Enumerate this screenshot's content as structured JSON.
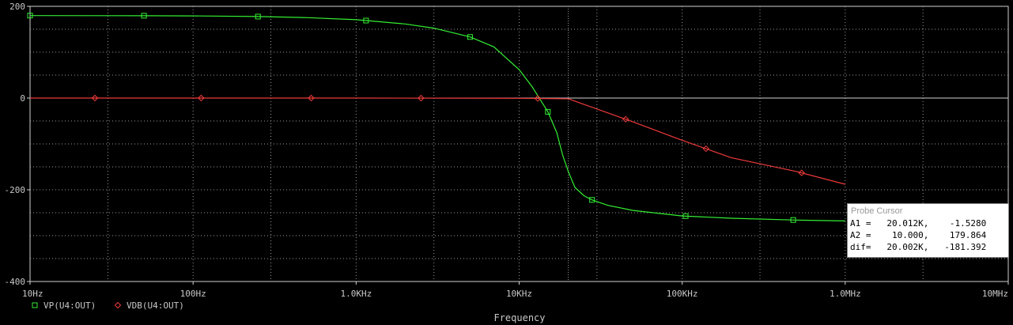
{
  "chart_data": {
    "type": "line",
    "xscale": "log",
    "xlim": [
      10,
      10000000
    ],
    "ylim": [
      -400,
      200
    ],
    "xlabel": "Frequency",
    "x_tick_labels": [
      "10Hz",
      "100Hz",
      "1.0KHz",
      "10KHz",
      "100KHz",
      "1.0MHz",
      "10MHz"
    ],
    "y_tick_labels": [
      "200",
      "0",
      "-200",
      "-400"
    ],
    "grid": true,
    "series": [
      {
        "name": "VP(U4:OUT)",
        "color": "#33ee33",
        "marker": "square",
        "x": [
          10,
          50,
          100,
          250,
          500,
          1000,
          2000,
          3000,
          5000,
          7000,
          10000,
          12000,
          15000,
          17000,
          18500,
          20000,
          22000,
          25000,
          28000,
          35000,
          50000,
          100000,
          200000,
          500000,
          1000000
        ],
        "y": [
          179.9,
          179.5,
          179.1,
          177.7,
          175.4,
          170.8,
          161.6,
          152.4,
          133.2,
          111.5,
          62.0,
          25.0,
          -30.0,
          -75.0,
          -125.0,
          -160.0,
          -195.0,
          -213.0,
          -222.0,
          -234.0,
          -245.0,
          -257.0,
          -262.0,
          -266.0,
          -268.0
        ],
        "marker_x": [
          10,
          50,
          250,
          1150,
          5000,
          15000,
          28000,
          105000,
          480000
        ]
      },
      {
        "name": "VDB(U4:OUT)",
        "color": "#ee3a3a",
        "marker": "diamond",
        "x": [
          10,
          100,
          1000,
          10000,
          15000,
          20000,
          50000,
          100000,
          200000,
          500000,
          1000000
        ],
        "y": [
          0,
          0,
          0,
          -0.5,
          -1.0,
          -1.5,
          -52,
          -92,
          -130,
          -160,
          -188
        ],
        "marker_x": [
          25,
          112,
          530,
          2500,
          13000,
          45000,
          140000,
          540000
        ]
      }
    ],
    "cursor": {
      "title": "Probe Cursor",
      "lines": [
        "A1 =   20.012K,    -1.5280",
        "A2 =    10.000,    179.864",
        "dif=   20.002K,   -181.392"
      ],
      "x": 20012
    }
  }
}
